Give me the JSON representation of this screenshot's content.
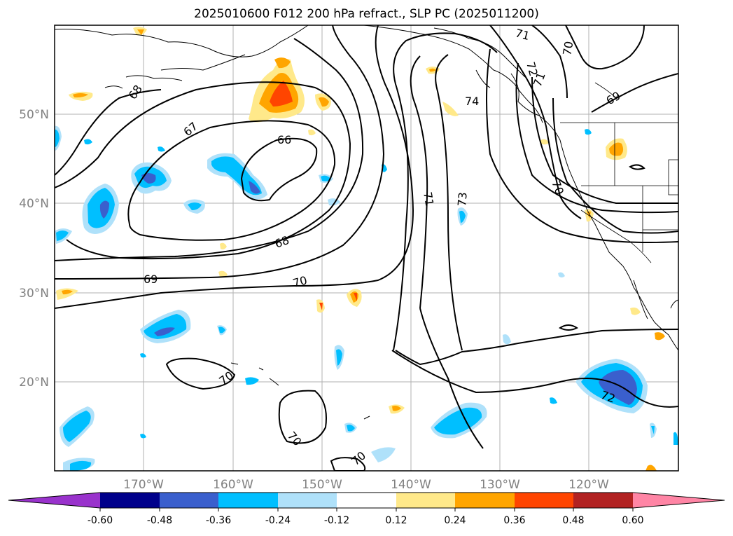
{
  "title": "2025010600 F012 200 hPa refract., SLP PC (2025011200)",
  "map": {
    "lon_range": [
      -180,
      -110
    ],
    "lat_range": [
      10,
      60
    ],
    "lon_ticks": [
      "170°W",
      "160°W",
      "150°W",
      "140°W",
      "130°W",
      "120°W"
    ],
    "lat_ticks": [
      "50°N",
      "40°N",
      "30°N",
      "20°N"
    ],
    "grid": true
  },
  "contour_labels": [
    "68",
    "67",
    "66",
    "68",
    "69",
    "70",
    "70",
    "70",
    "70",
    "71",
    "72",
    "71",
    "70",
    "74",
    "71",
    "73",
    "70",
    "69",
    "72"
  ],
  "colorbar": {
    "ticks": [
      "-0.60",
      "-0.48",
      "-0.36",
      "-0.24",
      "-0.12",
      "0.12",
      "0.24",
      "0.36",
      "0.48",
      "0.60"
    ],
    "colors": [
      "#9932cc",
      "#00008b",
      "#3a5fcd",
      "#00bfff",
      "#afe1fa",
      "#ffffff",
      "#ffe98a",
      "#ffa500",
      "#ff4500",
      "#b22222",
      "#ff85a5"
    ]
  }
}
